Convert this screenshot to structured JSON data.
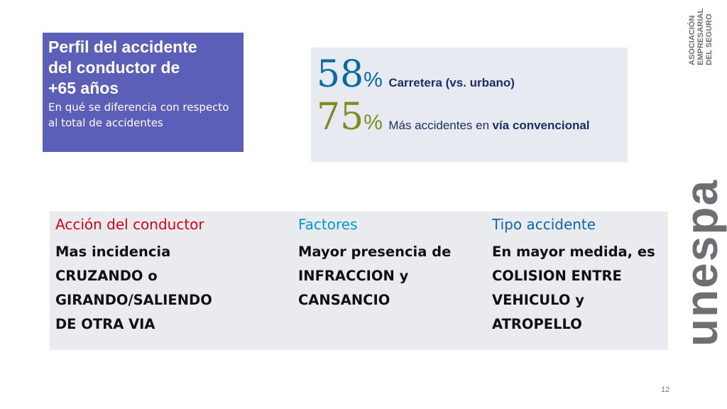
{
  "title_box": {
    "title": "Perfil del accidente\ndel conductor de\n+65 años",
    "subtitle": "En qué se diferencia con respecto al total de accidentes",
    "bg_color": "#5b5fb8"
  },
  "stats": [
    {
      "number": "58",
      "percent": "%",
      "label": "Carretera (vs. urbano)",
      "label_strong": "",
      "color": "#0b6aa3"
    },
    {
      "number": "75",
      "percent": "%",
      "label": "Más accidentes en",
      "label_strong": "vía convencional",
      "color": "#7f8b1f"
    }
  ],
  "table": {
    "columns": [
      {
        "header": "Acción del conductor",
        "header_color": "#d9001b",
        "body": "Mas incidencia\nCRUZANDO  o\nGIRANDO/SALIENDO\nDE OTRA VIA"
      },
      {
        "header": "Factores",
        "header_color": "#0098d4",
        "body": "Mayor presencia de\nINFRACCION y\nCANSANCIO"
      },
      {
        "header": "Tipo accidente",
        "header_color": "#0b66b0",
        "body": "En mayor medida, es\nCOLISION ENTRE\nVEHICULO y\nATROPELLO"
      }
    ]
  },
  "page_number": "12",
  "logo": {
    "wordmark": "unespa",
    "tagline_lines": [
      "ASOCIACIÓN",
      "EMPRESARIAL",
      "DEL SEGURO"
    ],
    "color": "#6e6f73"
  }
}
